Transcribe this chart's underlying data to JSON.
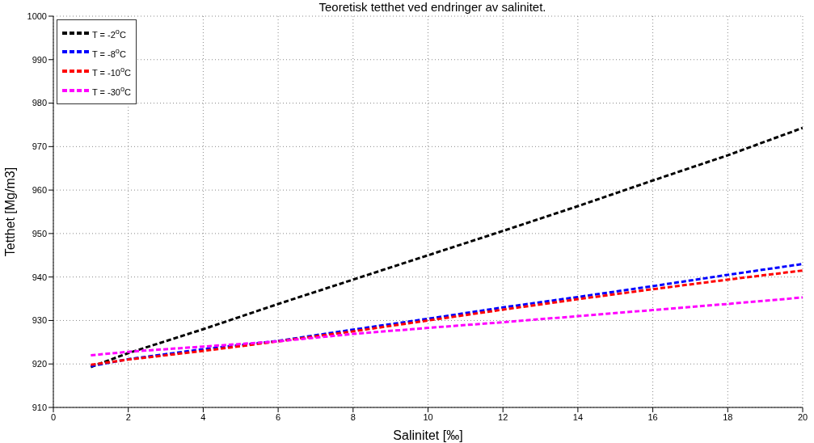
{
  "chart_data": {
    "type": "line",
    "title": "Teoretisk tetthet ved endringer av salinitet.",
    "xlabel": "Salinitet [‰]",
    "ylabel": "Tetthet [Mg/m3]",
    "x": [
      1,
      2,
      4,
      6,
      8,
      10,
      12,
      14,
      16,
      18,
      20
    ],
    "series": [
      {
        "name": "T = -2$^{o}$C",
        "color": "#000000",
        "values": [
          919.3,
          922.5,
          928,
          933.8,
          939.4,
          945,
          950.6,
          956.3,
          962.2,
          968,
          974.3
        ]
      },
      {
        "name": "T = -8$^{o}$C",
        "color": "#0000ff",
        "values": [
          919.5,
          921.1,
          923.4,
          925.3,
          927.9,
          930.4,
          933,
          935.4,
          937.9,
          940.5,
          943
        ]
      },
      {
        "name": "T = -10$^{o}$C",
        "color": "#ff0000",
        "values": [
          919.8,
          921,
          923,
          925.2,
          927.5,
          930,
          932.5,
          934.9,
          937.2,
          939.4,
          941.5
        ]
      },
      {
        "name": "T = -30$^{o}$C",
        "color": "#ff00ff",
        "values": [
          922,
          922.8,
          924,
          925.2,
          926.9,
          928.3,
          929.6,
          931,
          932.4,
          933.8,
          935.3
        ]
      }
    ],
    "xlim": [
      0,
      20
    ],
    "xticks": [
      0,
      2,
      4,
      6,
      8,
      10,
      12,
      14,
      16,
      18,
      20
    ],
    "ylim": [
      910,
      1000
    ],
    "yticks": [
      910,
      920,
      930,
      940,
      950,
      960,
      970,
      980,
      990,
      1000
    ],
    "grid": true,
    "legend": "top left",
    "line_style": "dashed",
    "marker": "none"
  }
}
